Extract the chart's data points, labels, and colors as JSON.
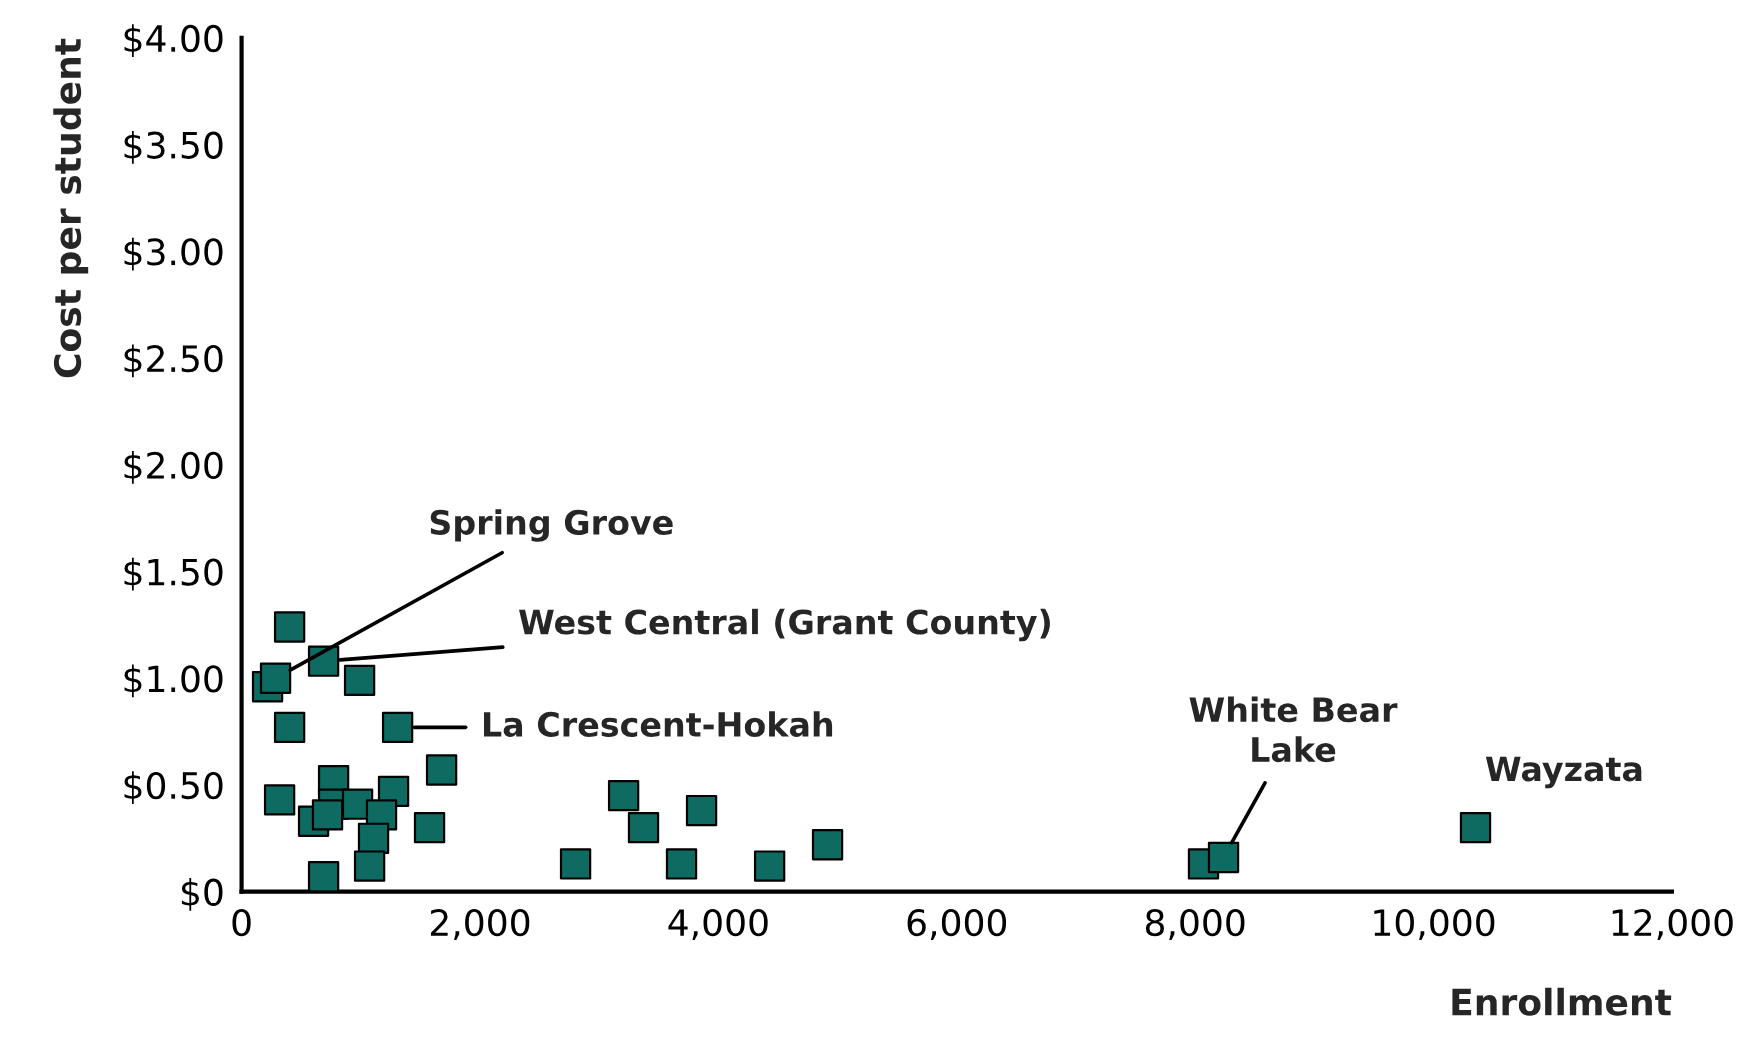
{
  "chart_data": {
    "type": "scatter",
    "xlabel": "Enrollment",
    "ylabel": "Cost per student",
    "x": [
      218,
      285,
      403,
      403,
      688,
      990,
      1309,
      1678,
      319,
      772,
      772,
      604,
      721,
      973,
      1275,
      1174,
      1107,
      1577,
      1074,
      688,
      2802,
      3205,
      3372,
      3691,
      3859,
      4430,
      4916,
      8070,
      8238,
      10352
    ],
    "series": [
      {
        "color": "#0e6b62",
        "values": [
          0.96,
          1.0,
          1.24,
          0.77,
          1.08,
          0.99,
          0.77,
          0.57,
          0.43,
          0.52,
          0.41,
          0.33,
          0.36,
          0.41,
          0.47,
          0.36,
          0.25,
          0.3,
          0.12,
          0.07,
          0.13,
          0.45,
          0.3,
          0.13,
          0.38,
          0.12,
          0.22,
          0.13,
          0.16,
          0.3
        ]
      }
    ],
    "xlim": [
      0,
      12000
    ],
    "xticks": [
      0,
      {
        "value": 2000,
        "label": "2,000"
      },
      {
        "value": 4000,
        "label": "4,000"
      },
      {
        "value": 6000,
        "label": "6,000"
      },
      {
        "value": 8000,
        "label": "8,000"
      },
      {
        "value": 10000,
        "label": "10,000"
      },
      {
        "value": 12000,
        "label": "12,000"
      }
    ],
    "ylim": [
      0,
      4
    ],
    "yticks": [
      {
        "value": 0,
        "label": "$0"
      },
      {
        "value": 0.5,
        "label": "$0.50"
      },
      {
        "value": 1,
        "label": "$1.00"
      },
      {
        "value": 1.5,
        "label": "$1.50"
      },
      {
        "value": 2,
        "label": "$2.00"
      },
      {
        "value": 2.5,
        "label": "$2.50"
      },
      {
        "value": 3,
        "label": "$3.00"
      },
      {
        "value": 3.5,
        "label": "$3.50"
      },
      {
        "value": 4,
        "label": "$4.00"
      }
    ],
    "annotations": [
      {
        "text": "Spring Grove",
        "x": 285,
        "y": 1.0
      },
      {
        "text": "West Central (Grant County)",
        "x": 688,
        "y": 1.08
      },
      {
        "text": "La Crescent-Hokah",
        "x": 1309,
        "y": 0.77
      },
      {
        "text": "White Bear\nLake",
        "x": 8238,
        "y": 0.16
      },
      {
        "text": "Wayzata",
        "x": 10352,
        "y": 0.3
      }
    ],
    "marker": "square",
    "grid": false
  }
}
